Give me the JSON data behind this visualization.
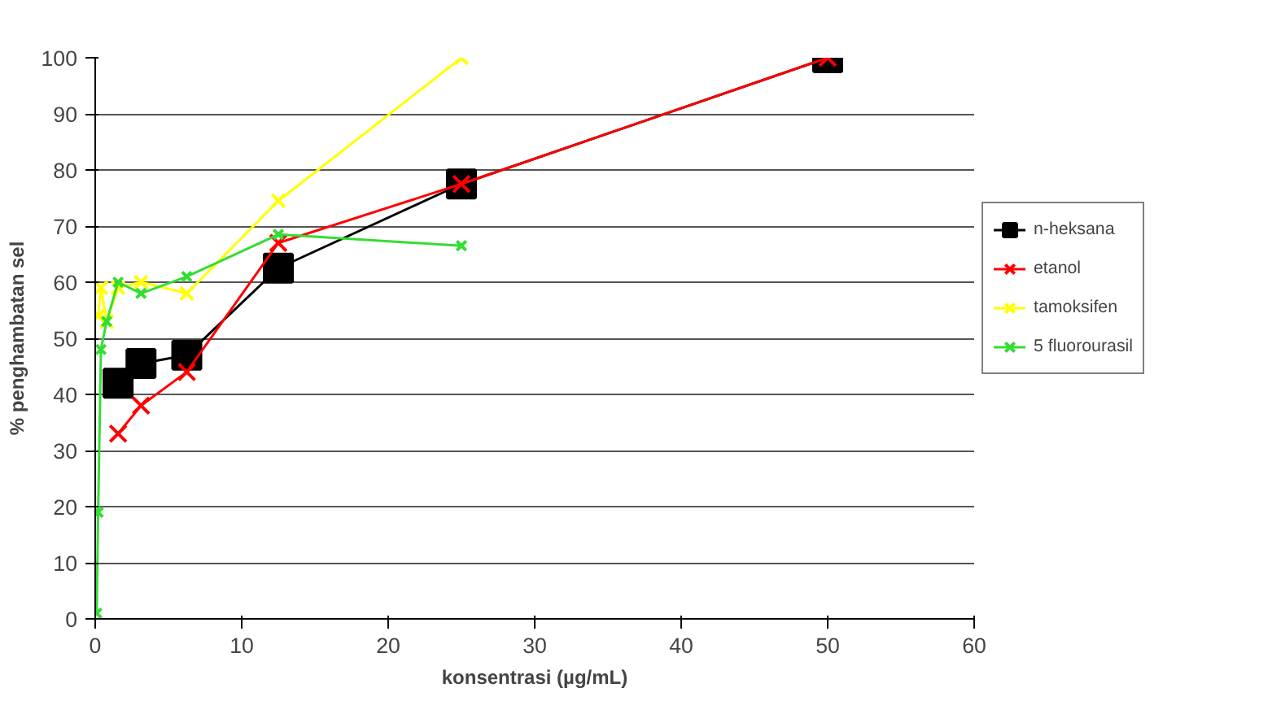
{
  "chart_data": {
    "type": "line",
    "xlabel": "konsentrasi (µg/mL)",
    "ylabel": "% penghambatan sel",
    "xlim": [
      0,
      60
    ],
    "ylim": [
      0,
      100
    ],
    "xticks": [
      0,
      10,
      20,
      30,
      40,
      50,
      60
    ],
    "yticks": [
      0,
      10,
      20,
      30,
      40,
      50,
      60,
      70,
      80,
      90,
      100
    ],
    "grid": "y",
    "legend": "right",
    "series": [
      {
        "name": "n-heksana",
        "color": "#000000",
        "marker": "square",
        "x": [
          1.5625,
          3.125,
          6.25,
          12.5,
          25,
          50
        ],
        "values": [
          42,
          45.5,
          47,
          62.5,
          77.5,
          100
        ]
      },
      {
        "name": "etanol",
        "color": "#ff0000",
        "marker": "cross",
        "x": [
          1.5625,
          3.125,
          6.25,
          12.5,
          25,
          50
        ],
        "values": [
          33,
          38,
          44,
          67,
          77.5,
          100
        ]
      },
      {
        "name": "tamoksifen",
        "color": "#ffff00",
        "marker": "cross",
        "x": [
          0.195,
          0.39,
          0.78,
          1.5625,
          3.125,
          6.25,
          12.5,
          25
        ],
        "values": [
          54,
          59,
          53,
          59,
          60,
          58,
          74.5,
          100
        ]
      },
      {
        "name": "5 fluorourasil",
        "color": "#33dd33",
        "marker": "cross",
        "x": [
          0.1,
          0.2,
          0.39,
          0.78,
          1.5625,
          3.125,
          6.25,
          12.5,
          25
        ],
        "values": [
          1,
          19,
          48,
          53,
          60,
          58,
          61,
          68.5,
          66.5
        ]
      }
    ]
  }
}
